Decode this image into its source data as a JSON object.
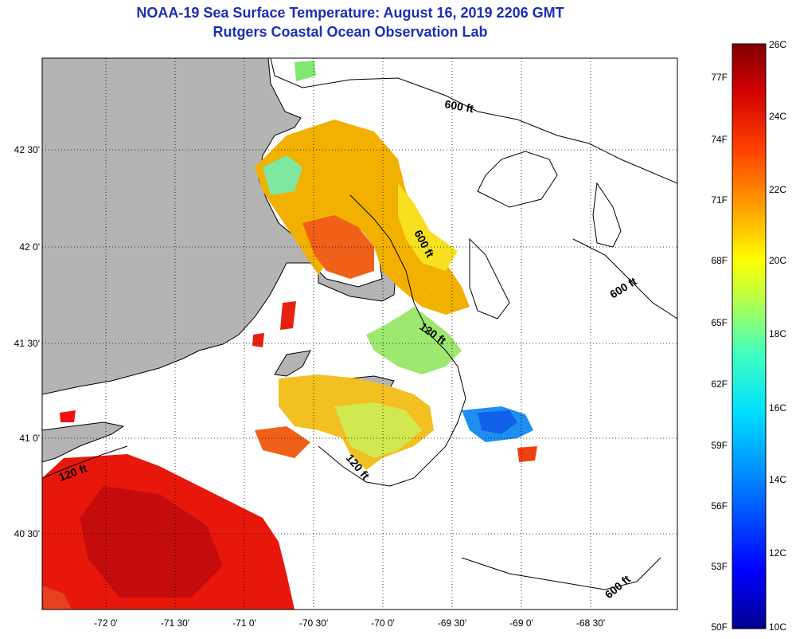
{
  "header": {
    "title": "NOAA-19 Sea Surface Temperature:  August 16, 2019 2206 GMT",
    "subtitle": "Rutgers Coastal Ocean Observation Lab"
  },
  "map": {
    "lon_labels": [
      "-72 0'",
      "-71 30'",
      "-71 0'",
      "-70 30'",
      "-70 0'",
      "-69 30'",
      "-69 0'",
      "-68 30'"
    ],
    "lat_labels": [
      "42 30'",
      "42 0'",
      "41 30'",
      "41 0'",
      "40 30'"
    ],
    "contour_labels": [
      "600 ft",
      "600 ft",
      "600 ft",
      "600 ft",
      "120 ft",
      "120 ft",
      "120 ft"
    ]
  },
  "colorbar": {
    "celsius_labels": [
      "26C",
      "24C",
      "22C",
      "20C",
      "18C",
      "16C",
      "14C",
      "12C",
      "10C"
    ],
    "fahrenheit_labels": [
      "77F",
      "74F",
      "71F",
      "68F",
      "65F",
      "62F",
      "59F",
      "56F",
      "53F",
      "50F"
    ],
    "celsius_range": [
      10,
      26
    ],
    "colors": [
      "#00008f",
      "#0000ff",
      "#0080ff",
      "#00e0ff",
      "#40ffc0",
      "#c0ff40",
      "#ffff00",
      "#ffa000",
      "#ff4000",
      "#d00000",
      "#800000"
    ]
  },
  "colors": {
    "land": "#b4b4b4",
    "title": "#1b2fb4"
  }
}
